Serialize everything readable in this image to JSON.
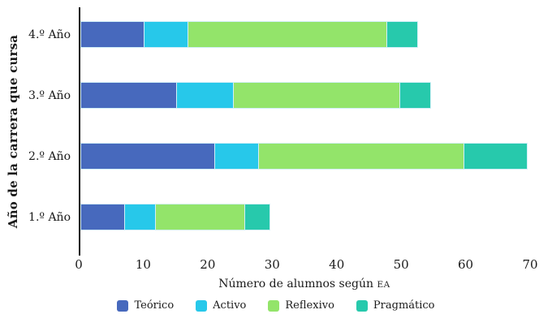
{
  "chart_data": {
    "type": "bar",
    "orientation": "horizontal",
    "stacked": true,
    "title": "",
    "xlabel": "Número de alumnos según",
    "xlabel_smallcaps_suffix": "EA",
    "ylabel": "Año de la carrera que cursa",
    "row_order": "top-to-bottom",
    "categories": [
      "4.º Año",
      "3.º Año",
      "2.º Año",
      "1.º Año"
    ],
    "series": [
      {
        "name": "Teórico",
        "color": "#4769bd",
        "values": [
          10,
          15,
          21,
          7
        ]
      },
      {
        "name": "Activo",
        "color": "#27c8ea",
        "values": [
          7,
          9,
          7,
          5
        ]
      },
      {
        "name": "Reflexivo",
        "color": "#93e46a",
        "values": [
          31,
          26,
          32,
          14
        ]
      },
      {
        "name": "Pragmático",
        "color": "#27c9ac",
        "values": [
          5,
          5,
          10,
          4
        ]
      }
    ],
    "stack_totals": [
      53,
      55,
      70,
      30
    ],
    "xlim": [
      0,
      70
    ],
    "xticks": [
      0,
      10,
      20,
      30,
      40,
      50,
      60,
      70
    ],
    "grid": false,
    "legend_position": "bottom",
    "background": "#ffffff",
    "segment_border_color": "#d2eff8",
    "axis_line_color": "#111111"
  }
}
